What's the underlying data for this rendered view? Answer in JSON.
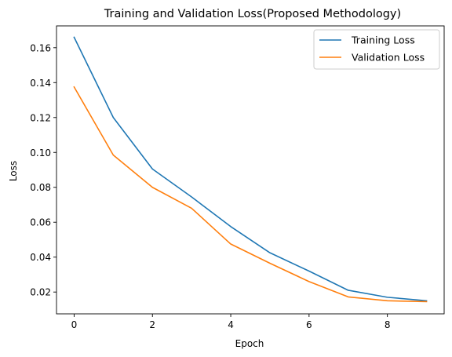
{
  "chart_data": {
    "type": "line",
    "title": "Training and Validation Loss(Proposed Methodology)",
    "xlabel": "Epoch",
    "ylabel": "Loss",
    "x": [
      0,
      1,
      2,
      3,
      4,
      5,
      6,
      7,
      8,
      9
    ],
    "xlim": [
      -0.45,
      9.45
    ],
    "ylim": [
      0.0075,
      0.1725
    ],
    "xticks": [
      0,
      2,
      4,
      6,
      8
    ],
    "yticks": [
      0.02,
      0.04,
      0.06,
      0.08,
      0.1,
      0.12,
      0.14,
      0.16
    ],
    "ytick_labels": [
      "0.02",
      "0.04",
      "0.06",
      "0.08",
      "0.10",
      "0.12",
      "0.14",
      "0.16"
    ],
    "grid": false,
    "legend_position": "top-right",
    "series": [
      {
        "name": "Training Loss",
        "color": "#1f77b4",
        "values": [
          0.166,
          0.12,
          0.0905,
          0.0745,
          0.0575,
          0.0425,
          0.032,
          0.021,
          0.017,
          0.015
        ]
      },
      {
        "name": "Validation Loss",
        "color": "#ff7f0e",
        "values": [
          0.1375,
          0.0985,
          0.08,
          0.068,
          0.0475,
          0.0365,
          0.026,
          0.0172,
          0.015,
          0.0145
        ]
      }
    ]
  }
}
